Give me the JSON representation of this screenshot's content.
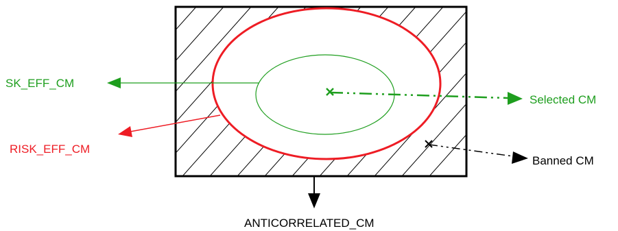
{
  "labels": {
    "sk_eff": "SK_EFF_CM",
    "risk_eff": "RISK_EFF_CM",
    "selected": "Selected CM",
    "banned": "Banned CM",
    "anticorrelated": "ANTICORRELATED_CM"
  },
  "colors": {
    "green": "#1e9e1e",
    "red": "#ee1c24",
    "black": "#000000"
  }
}
